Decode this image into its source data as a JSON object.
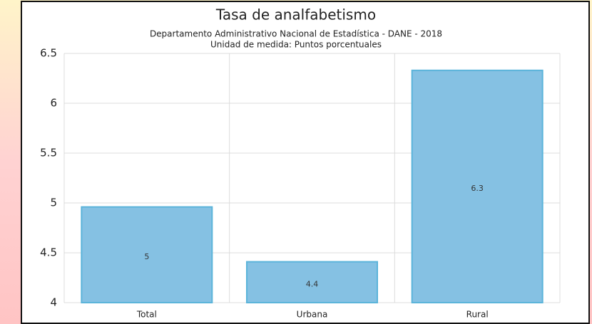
{
  "chart_data": {
    "type": "bar",
    "title": "Tasa de analfabetismo",
    "subtitle": "Departamento Administrativo Nacional de Estadística - DANE - 2018",
    "subtitle2": "Unidad de medida: Puntos porcentuales",
    "categories": [
      "Total",
      "Urbana",
      "Rural"
    ],
    "values": [
      4.96,
      4.41,
      6.33
    ],
    "value_labels": [
      "5",
      "4.4",
      "6.3"
    ],
    "color": "#85c1e3",
    "ylim": [
      4,
      6.5
    ],
    "yticks": [
      4,
      4.5,
      5,
      5.5,
      6,
      6.5
    ],
    "grid": true
  }
}
